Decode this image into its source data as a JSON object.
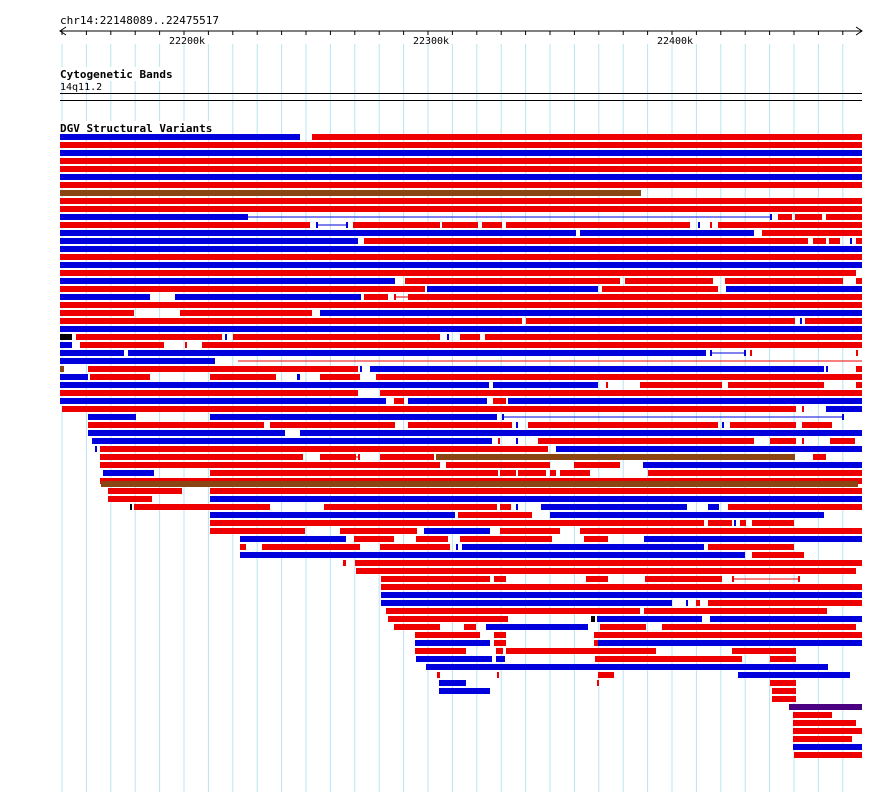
{
  "ruler": {
    "location_label": "chr14:22148089..22475517",
    "ticks": [
      "22200k",
      "22300k",
      "22400k"
    ]
  },
  "tracks": {
    "cytoband_title": "Cytogenetic Bands",
    "cytoband_label": "14q11.2",
    "dgv_title": "DGV Structural Variants"
  },
  "colors": {
    "gain": "#ee0000",
    "loss": "#0000dd",
    "gain_loss": "#8b4513",
    "inversion": "#4b0082",
    "complex": "#000000",
    "grid": "#b8e4f0"
  }
}
